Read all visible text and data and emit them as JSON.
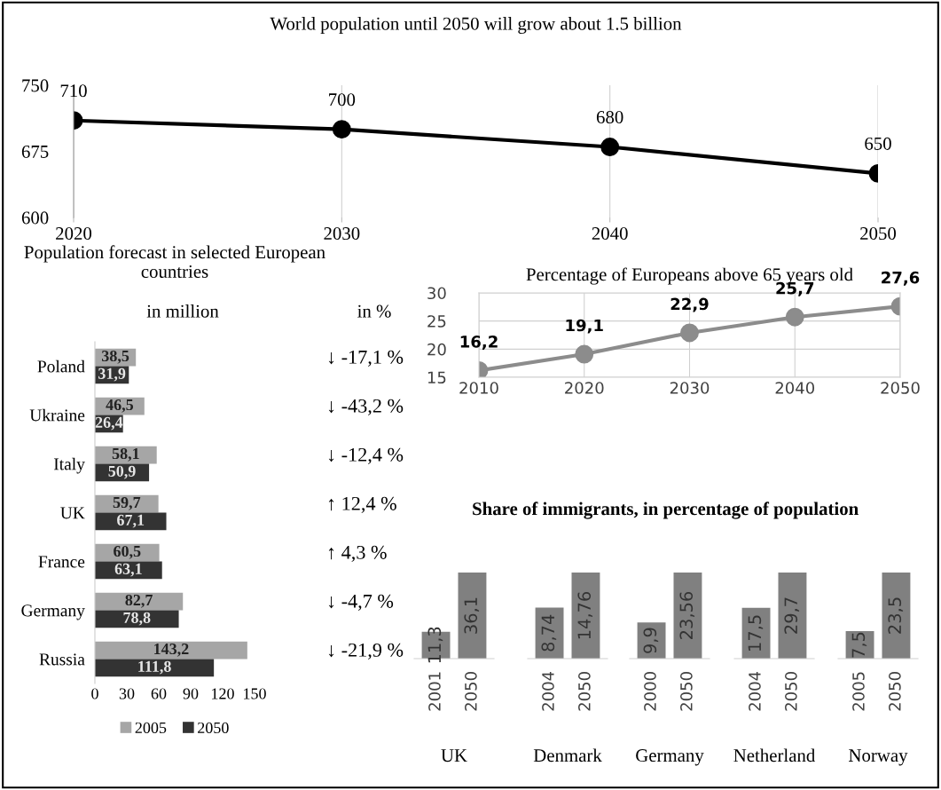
{
  "chart_data": [
    {
      "type": "line",
      "title": "World population until 2050 will grow about 1.5 billion",
      "x": [
        2020,
        2030,
        2040,
        2050
      ],
      "values": [
        710,
        700,
        680,
        650
      ],
      "color": "#000000",
      "xlim": [
        2020,
        2050
      ],
      "xticks": [
        2020,
        2030,
        2040,
        2050
      ],
      "ylim": [
        600,
        750
      ],
      "yticks": [
        600,
        675,
        750
      ],
      "marker": "circle",
      "data_labels": true,
      "grid": "x"
    },
    {
      "type": "bar",
      "orientation": "horizontal",
      "title": "Population forecast in selected European\ncountries",
      "categories": [
        "Poland",
        "Ukraine",
        "Italy",
        "UK",
        "France",
        "Germany",
        "Russia"
      ],
      "series": [
        {
          "name": "2005",
          "color": "#a6a6a6",
          "values": [
            38.5,
            46.5,
            58.1,
            59.7,
            60.5,
            82.7,
            143.2
          ],
          "value_labels": [
            "38,5",
            "46,5",
            "58,1",
            "59,7",
            "60,5",
            "82,7",
            "143,2"
          ]
        },
        {
          "name": "2050",
          "color": "#333333",
          "values": [
            31.9,
            26.4,
            50.9,
            67.1,
            63.1,
            78.8,
            111.8
          ],
          "value_labels": [
            "31,9",
            "26,4",
            "50,9",
            "67,1",
            "63,1",
            "78,8",
            "111,8"
          ]
        }
      ],
      "xlim": [
        0,
        150
      ],
      "xticks": [
        0,
        30,
        60,
        90,
        120,
        150
      ],
      "legend": "bottom",
      "annotations": [
        "in million",
        "in %",
        "↓ -17,1 %",
        "↓ -43,2 %",
        "↓ -12,4 %",
        "↑ 12,4 %",
        "↑ 4,3 %",
        "↓ -4,7 %",
        "↓ -21,9 %"
      ]
    },
    {
      "type": "line",
      "title": "Percentage of Europeans above 65 years old",
      "x": [
        2010,
        2020,
        2030,
        2040,
        2050
      ],
      "values": [
        16.2,
        19.1,
        22.9,
        25.7,
        27.6
      ],
      "value_labels": [
        "16,2",
        "19,1",
        "22,9",
        "25,7",
        "27,6"
      ],
      "color": "#8c8c8c",
      "xlim": [
        2010,
        2050
      ],
      "xticks": [
        2010,
        2020,
        2030,
        2040,
        2050
      ],
      "ylim": [
        15,
        30
      ],
      "yticks": [
        15,
        20,
        25,
        30
      ],
      "marker": "circle",
      "grid": true
    },
    {
      "type": "bar",
      "title": "Share of immigrants, in percentage of population",
      "xlabel": "UK",
      "categories": [
        "2001",
        "2050"
      ],
      "values": [
        11.3,
        36.1
      ],
      "value_labels": [
        "11,3",
        "36,1"
      ],
      "color": "#808080"
    },
    {
      "type": "bar",
      "xlabel": "Denmark",
      "categories": [
        "2004",
        "2050"
      ],
      "values": [
        8.74,
        14.76
      ],
      "value_labels": [
        "8,74",
        "14,76"
      ],
      "color": "#808080"
    },
    {
      "type": "bar",
      "xlabel": "Germany",
      "categories": [
        "2000",
        "2050"
      ],
      "values": [
        9.9,
        23.56
      ],
      "value_labels": [
        "9,9",
        "23,56"
      ],
      "color": "#808080"
    },
    {
      "type": "bar",
      "xlabel": "Netherland",
      "categories": [
        "2004",
        "2050"
      ],
      "values": [
        17.5,
        29.7
      ],
      "value_labels": [
        "17,5",
        "29,7"
      ],
      "color": "#808080"
    },
    {
      "type": "bar",
      "xlabel": "Norway",
      "categories": [
        "2005",
        "2050"
      ],
      "values": [
        7.5,
        23.5
      ],
      "value_labels": [
        "7,5",
        "23,5"
      ],
      "color": "#808080"
    }
  ]
}
